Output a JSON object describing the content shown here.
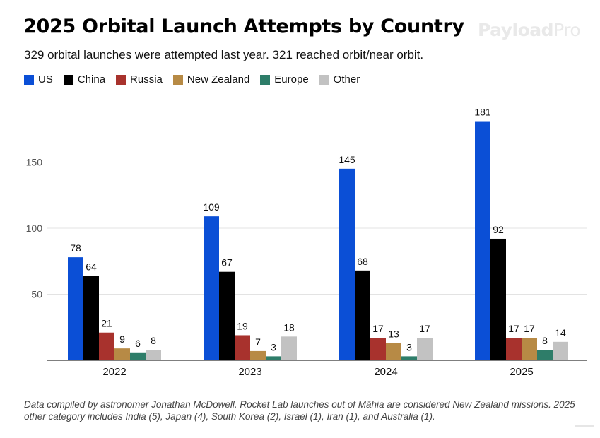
{
  "title": "2025 Orbital Launch Attempts by Country",
  "logo": {
    "main": "Payload",
    "suffix": "Pro"
  },
  "subtitle": "329 orbital launches were attempted last year. 321 reached orbit/near orbit.",
  "footnote": "Data compiled by astronomer Jonathan McDowell. Rocket Lab launches out of Māhia are considered New Zealand missions. 2025 other category includes India (5), Japan (4), South Korea (2), Israel (1), Iran (1), and Australia (1).",
  "chart_data": {
    "type": "bar",
    "title": "2025 Orbital Launch Attempts by Country",
    "xlabel": "",
    "ylabel": "",
    "categories": [
      "2022",
      "2023",
      "2024",
      "2025"
    ],
    "series": [
      {
        "name": "US",
        "color": "#0b4fd6",
        "values": [
          78,
          109,
          145,
          181
        ]
      },
      {
        "name": "China",
        "color": "#000000",
        "values": [
          64,
          67,
          68,
          92
        ]
      },
      {
        "name": "Russia",
        "color": "#a8322d",
        "values": [
          21,
          19,
          17,
          17
        ]
      },
      {
        "name": "New Zealand",
        "color": "#b78a45",
        "values": [
          9,
          7,
          13,
          17
        ]
      },
      {
        "name": "Europe",
        "color": "#2e7d69",
        "values": [
          6,
          3,
          3,
          8
        ]
      },
      {
        "name": "Other",
        "color": "#c2c2c2",
        "values": [
          8,
          18,
          17,
          14
        ]
      }
    ],
    "yticks": [
      50,
      100,
      150
    ],
    "ylim": [
      0,
      190
    ],
    "grid": true,
    "legend": "top-left",
    "data_labels": true
  }
}
